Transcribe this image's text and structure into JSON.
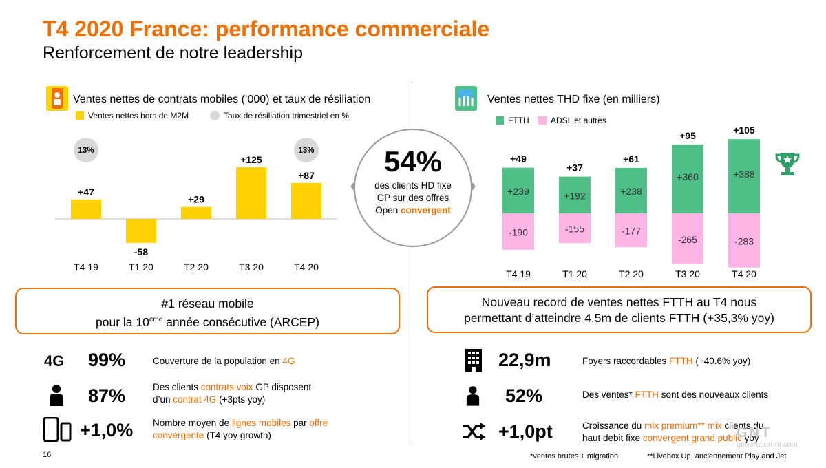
{
  "header": {
    "title": "T4 2020 France: performance commerciale",
    "subtitle": "Renforcement de notre leadership"
  },
  "chart_data": [
    {
      "type": "bar",
      "title": "Ventes nettes de contrats mobiles (‘000) et taux de résiliation",
      "categories": [
        "T4 19",
        "T1 20",
        "T2 20",
        "T3 20",
        "T4 20"
      ],
      "series": [
        {
          "name": "Ventes nettes hors de M2M",
          "values": [
            47,
            -58,
            29,
            125,
            87
          ],
          "labels": [
            "+47",
            "-58",
            "+29",
            "+125",
            "+87"
          ],
          "color": "#FFD200"
        }
      ],
      "churn": {
        "name": "Taux de résiliation trimestriel en %",
        "points": [
          {
            "category": "T4 19",
            "label": "13%"
          },
          {
            "category": "T4 20",
            "label": "13%"
          }
        ],
        "color": "#d9d9d9"
      }
    },
    {
      "type": "bar",
      "title": "Ventes nettes THD fixe (en milliers)",
      "categories": [
        "T4 19",
        "T1 20",
        "T2 20",
        "T3 20",
        "T4 20"
      ],
      "series": [
        {
          "name": "FTTH",
          "values": [
            239,
            192,
            238,
            360,
            388
          ],
          "labels": [
            "+239",
            "+192",
            "+238",
            "+360",
            "+388"
          ],
          "color": "#50BE87"
        },
        {
          "name": "ADSL et autres",
          "values": [
            -190,
            -155,
            -177,
            -265,
            -283
          ],
          "labels": [
            "-190",
            "-155",
            "-177",
            "-265",
            "-283"
          ],
          "color": "#FFB4E6"
        }
      ],
      "totals": [
        "+49",
        "+37",
        "+61",
        "+95",
        "+105"
      ]
    }
  ],
  "left_chart": {
    "legend_bar": "Ventes nettes hors de M2M",
    "legend_churn": "Taux de résiliation trimestriel en %"
  },
  "right_chart": {
    "legend_ftth": "FTTH",
    "legend_adsl": "ADSL et autres"
  },
  "center": {
    "value": "54%",
    "line1": "des clients HD fixe",
    "line2": "GP sur des offres",
    "line3_prefix": "Open",
    "line3_highlight": "convergent"
  },
  "left_callout": {
    "line1": "#1 réseau mobile",
    "line2_prefix": "pour la 10",
    "line2_sup": "ème",
    "line2_suffix": " année consécutive (ARCEP)"
  },
  "right_callout": {
    "line1": "Nouveau record de ventes nettes FTTH au T4 nous",
    "line2": "permettant d’atteindre 4,5m de clients FTTH (+35,3% yoy)"
  },
  "left_kpis": [
    {
      "icon_text": "4G",
      "value": "99%",
      "desc": [
        [
          "Couverture de la population en  ",
          ""
        ],
        [
          "4G",
          "o"
        ]
      ]
    },
    {
      "value": "87%",
      "desc": [
        [
          "Des clients ",
          ""
        ],
        [
          "contrats voix",
          "o"
        ],
        [
          " GP disposent",
          ""
        ],
        [
          "\n",
          ""
        ],
        [
          "d’un ",
          ""
        ],
        [
          "contrat 4G",
          "o"
        ],
        [
          " (+3pts yoy)",
          ""
        ]
      ]
    },
    {
      "value": "+1,0%",
      "desc": [
        [
          "Nombre moyen de ",
          ""
        ],
        [
          "lignes mobiles",
          "o"
        ],
        [
          " par ",
          ""
        ],
        [
          "offre",
          "o"
        ],
        [
          "\n",
          ""
        ],
        [
          "convergente",
          "o"
        ],
        [
          "  (T4 yoy growth)",
          ""
        ]
      ]
    }
  ],
  "right_kpis": [
    {
      "value": "22,9m",
      "desc": [
        [
          "Foyers raccordables ",
          ""
        ],
        [
          "FTTH",
          "o"
        ],
        [
          " (+40.6% yoy)",
          ""
        ]
      ]
    },
    {
      "value": "52%",
      "desc": [
        [
          "Des ventes* ",
          ""
        ],
        [
          "FTTH",
          "o"
        ],
        [
          " sont des nouveaux clients",
          ""
        ]
      ]
    },
    {
      "value": "+1,0pt",
      "desc": [
        [
          "Croissance du ",
          ""
        ],
        [
          "mix premium**",
          "o"
        ],
        [
          " ",
          ""
        ],
        [
          "mix",
          "o"
        ],
        [
          " clients du",
          ""
        ],
        [
          "\n",
          ""
        ],
        [
          "haut debit fixe ",
          ""
        ],
        [
          "convergent grand public",
          "o"
        ],
        [
          " yoy",
          ""
        ]
      ]
    }
  ],
  "footer": {
    "page": "16",
    "note1": "*ventes brutes + migration",
    "note2": "**Livebox Up, anciennement Play and Jet",
    "watermark": "GNT",
    "watermark_site": "generation-nt.com"
  }
}
